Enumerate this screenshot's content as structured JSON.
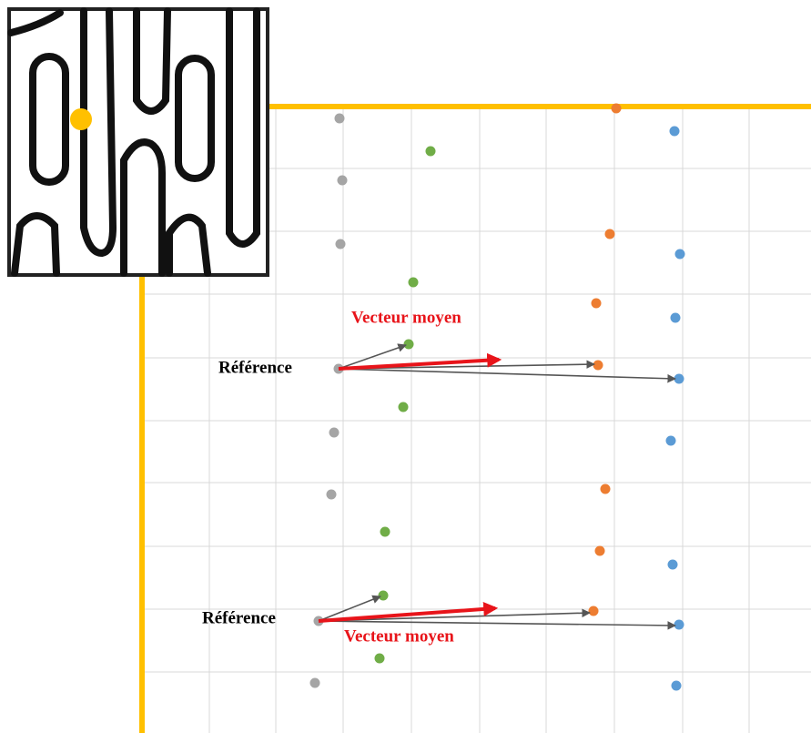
{
  "annotations": [
    {
      "reference": "Référence",
      "mean_vector": "Vecteur moyen"
    },
    {
      "reference": "Référence",
      "mean_vector": "Vecteur moyen"
    }
  ]
}
